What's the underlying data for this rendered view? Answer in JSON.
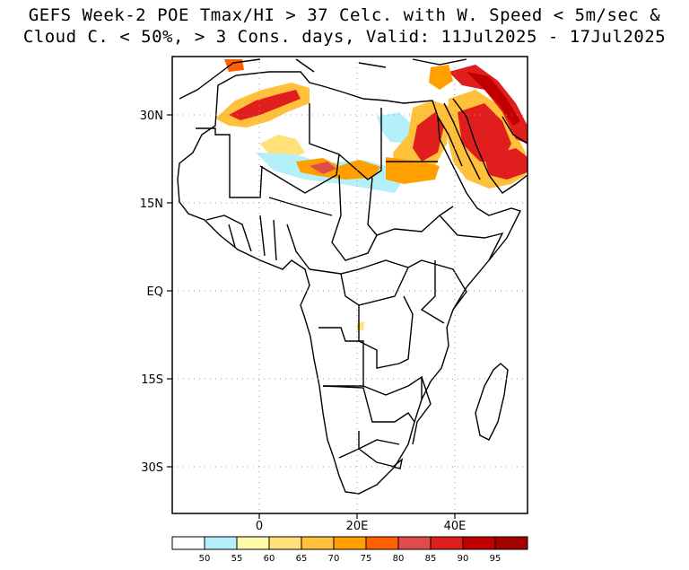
{
  "title_line1": "GEFS Week-2 POE Tmax/HI > 37 Celc. with W. Speed < 5m/sec &",
  "title_line2": "Cloud C. < 50%, > 3 Cons. days, Valid: 11Jul2025 - 17Jul2025",
  "y_axis_labels": [
    "30N",
    "15N",
    "EQ",
    "15S",
    "30S"
  ],
  "x_axis_labels": [
    "0",
    "20E",
    "40E"
  ],
  "colorbar": {
    "labels": [
      "50",
      "55",
      "60",
      "65",
      "70",
      "75",
      "80",
      "85",
      "90",
      "95"
    ],
    "colors": [
      "#ffffff",
      "#b4f0fa",
      "#fffaaa",
      "#ffe178",
      "#ffc03c",
      "#ffa000",
      "#ff6000",
      "#e14b4b",
      "#e11e1e",
      "#c00000",
      "#a50000"
    ]
  }
}
